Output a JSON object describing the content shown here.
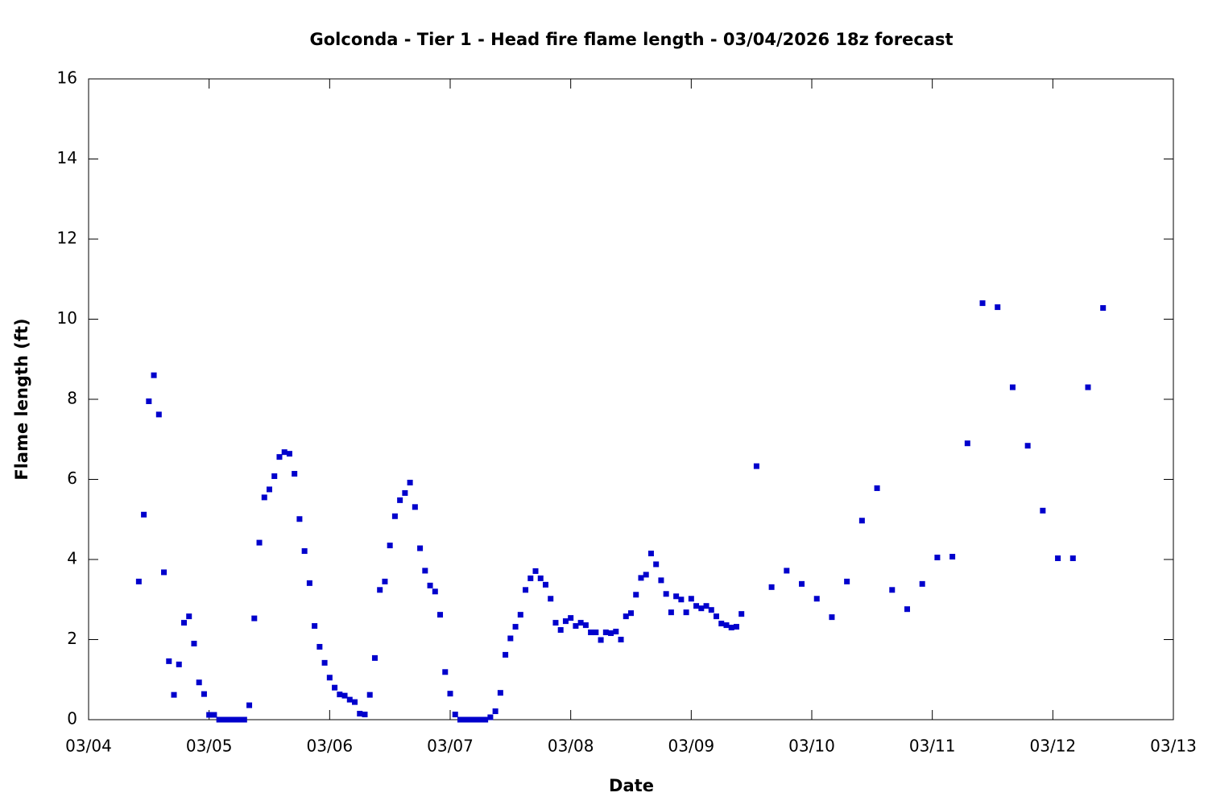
{
  "chart_data": {
    "type": "scatter",
    "title": "Golconda - Tier 1 - Head fire flame length - 03/04/2026 18z forecast",
    "xlabel": "Date",
    "ylabel": "Flame length (ft)",
    "color": "#0000cc",
    "xlim": [
      0,
      216
    ],
    "ylim": [
      0,
      16
    ],
    "xticks": [
      {
        "value": 0,
        "label": "03/04"
      },
      {
        "value": 24,
        "label": "03/05"
      },
      {
        "value": 48,
        "label": "03/06"
      },
      {
        "value": 72,
        "label": "03/07"
      },
      {
        "value": 96,
        "label": "03/08"
      },
      {
        "value": 120,
        "label": "03/09"
      },
      {
        "value": 144,
        "label": "03/10"
      },
      {
        "value": 168,
        "label": "03/11"
      },
      {
        "value": 192,
        "label": "03/12"
      },
      {
        "value": 216,
        "label": "03/13"
      }
    ],
    "yticks": [
      0,
      2,
      4,
      6,
      8,
      10,
      12,
      14,
      16
    ],
    "x": [
      10,
      11,
      12,
      13,
      14,
      15,
      16,
      17,
      18,
      19,
      20,
      21,
      22,
      23,
      24,
      25,
      26,
      27,
      28,
      29,
      30,
      31,
      32,
      33,
      34,
      35,
      36,
      37,
      38,
      39,
      40,
      41,
      42,
      43,
      44,
      45,
      46,
      47,
      48,
      49,
      50,
      51,
      52,
      53,
      54,
      55,
      56,
      57,
      58,
      59,
      60,
      61,
      62,
      63,
      64,
      65,
      66,
      67,
      68,
      69,
      70,
      71,
      72,
      73,
      74,
      75,
      76,
      77,
      78,
      79,
      80,
      81,
      82,
      83,
      84,
      85,
      86,
      87,
      88,
      89,
      90,
      91,
      92,
      93,
      94,
      95,
      96,
      97,
      98,
      99,
      100,
      101,
      102,
      103,
      104,
      105,
      106,
      107,
      108,
      109,
      110,
      111,
      112,
      113,
      114,
      115,
      116,
      117,
      118,
      119,
      120,
      121,
      122,
      123,
      124,
      125,
      126,
      127,
      128,
      129,
      130,
      133,
      136,
      139,
      142,
      145,
      148,
      151,
      154,
      157,
      160,
      163,
      166,
      169,
      172,
      175,
      178,
      181,
      184,
      187,
      190,
      193,
      196,
      199,
      202
    ],
    "values": [
      3.45,
      5.12,
      7.95,
      8.6,
      7.62,
      3.68,
      1.46,
      0.62,
      1.38,
      2.42,
      2.58,
      1.9,
      0.93,
      0.64,
      0.12,
      0.12,
      0,
      0,
      0,
      0,
      0,
      0,
      0.36,
      2.53,
      4.42,
      5.55,
      5.75,
      6.08,
      6.56,
      6.68,
      6.64,
      6.14,
      5.01,
      4.21,
      3.41,
      2.34,
      1.82,
      1.42,
      1.05,
      0.8,
      0.63,
      0.6,
      0.5,
      0.44,
      0.15,
      0.13,
      0.62,
      1.54,
      3.24,
      3.45,
      4.35,
      5.08,
      5.48,
      5.66,
      5.92,
      5.31,
      4.28,
      3.72,
      3.35,
      3.2,
      2.62,
      1.19,
      0.65,
      0.13,
      0,
      0,
      0,
      0,
      0,
      0,
      0.06,
      0.21,
      0.67,
      1.62,
      2.03,
      2.32,
      2.62,
      3.24,
      3.53,
      3.71,
      3.53,
      3.37,
      3.02,
      2.42,
      2.24,
      2.46,
      2.54,
      2.34,
      2.42,
      2.36,
      2.18,
      2.18,
      1.99,
      2.18,
      2.16,
      2.2,
      2.0,
      2.58,
      2.66,
      3.12,
      3.54,
      3.62,
      4.15,
      3.88,
      3.48,
      3.14,
      2.68,
      3.08,
      3.0,
      2.68,
      3.02,
      2.84,
      2.78,
      2.84,
      2.74,
      2.58,
      2.4,
      2.36,
      2.3,
      2.32,
      2.64,
      6.33,
      3.31,
      3.72,
      3.39,
      3.02,
      2.56,
      3.45,
      4.97,
      5.78,
      3.24,
      2.76,
      3.39,
      4.05,
      4.07,
      6.9,
      10.4,
      10.3,
      8.3,
      6.84,
      5.22,
      4.03,
      4.03,
      8.3,
      10.28
    ]
  }
}
